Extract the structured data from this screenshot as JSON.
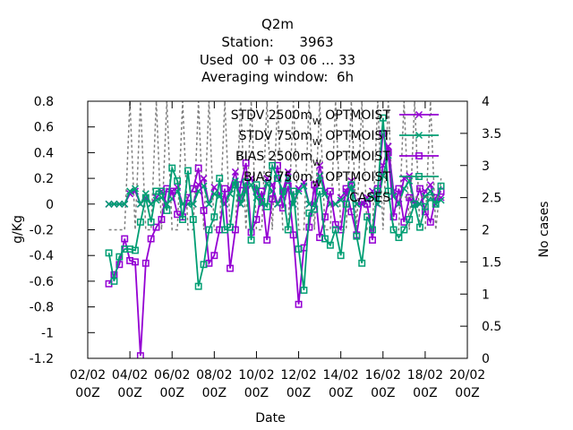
{
  "chart_data": {
    "type": "line",
    "title_lines": [
      "Q2m",
      "Station:      3963",
      "Used  00 + 03 06 ... 33",
      "Averaging window:  6h"
    ],
    "xlabel": "Date",
    "ylabel": "g/Kg",
    "y2label": "No cases",
    "x_range": [
      0,
      18
    ],
    "x_ticks": [
      {
        "x": 0,
        "label": "02/02",
        "label2": "00Z"
      },
      {
        "x": 2,
        "label": "04/02",
        "label2": "00Z"
      },
      {
        "x": 4,
        "label": "06/02",
        "label2": "00Z"
      },
      {
        "x": 6,
        "label": "08/02",
        "label2": "00Z"
      },
      {
        "x": 8,
        "label": "10/02",
        "label2": "00Z"
      },
      {
        "x": 10,
        "label": "12/02",
        "label2": "00Z"
      },
      {
        "x": 12,
        "label": "14/02",
        "label2": "00Z"
      },
      {
        "x": 14,
        "label": "16/02",
        "label2": "00Z"
      },
      {
        "x": 16,
        "label": "18/02",
        "label2": "00Z"
      },
      {
        "x": 18,
        "label": "20/02",
        "label2": "00Z"
      }
    ],
    "ylim": [
      -1.2,
      0.8
    ],
    "y_ticks": [
      -1.2,
      -1,
      -0.8,
      -0.6,
      -0.4,
      -0.2,
      0,
      0.2,
      0.4,
      0.6,
      0.8
    ],
    "y_tick_labels": [
      "-1.2",
      "-1",
      "-0.8",
      "-0.6",
      "-0.4",
      "-0.2",
      "0",
      "0.2",
      "0.4",
      "0.6",
      "0.8"
    ],
    "y2lim": [
      0,
      4
    ],
    "y2_ticks": [
      0,
      0.5,
      1,
      1.5,
      2,
      2.5,
      3,
      3.5,
      4
    ],
    "y2_tick_labels": [
      "0",
      "0.5",
      "1",
      "1.5",
      "2",
      "2.5",
      "3",
      "3.5",
      "4"
    ],
    "grid": false,
    "legend_position": "top-right",
    "series": [
      {
        "name": "STDV 2500m",
        "subscript": "W",
        "name_suffix": " OPTMOIST",
        "color": "#9400d3",
        "marker": "x",
        "axis": "y",
        "x": [
          1.0,
          1.25,
          1.5,
          1.75,
          2.0,
          2.25,
          2.5,
          2.75,
          3.0,
          3.25,
          3.5,
          3.75,
          4.0,
          4.25,
          4.5,
          4.75,
          5.0,
          5.25,
          5.5,
          5.75,
          6.0,
          6.25,
          6.5,
          6.75,
          7.0,
          7.25,
          7.5,
          7.75,
          8.0,
          8.25,
          8.5,
          8.75,
          9.0,
          9.25,
          9.5,
          9.75,
          10.0,
          10.25,
          10.5,
          10.75,
          11.0,
          11.25,
          11.5,
          11.75,
          12.0,
          12.25,
          12.5,
          12.75,
          13.0,
          13.25,
          13.5,
          13.75,
          14.0,
          14.25,
          14.5,
          14.75,
          15.0,
          15.25,
          15.5,
          15.75,
          16.0,
          16.25,
          16.5,
          16.75
        ],
        "values": [
          0,
          0,
          0,
          0,
          0.08,
          0.1,
          0,
          0.05,
          0,
          0.05,
          0.1,
          0,
          0.1,
          0.13,
          0,
          0,
          0,
          0.15,
          0.2,
          0,
          0.13,
          0.08,
          0,
          0.12,
          0.25,
          0,
          0.14,
          0.2,
          0.1,
          0,
          0.2,
          0.15,
          0,
          0.1,
          0.25,
          0,
          0.12,
          0.17,
          0,
          0,
          0.3,
          0.1,
          0,
          0,
          0.05,
          0.1,
          0.18,
          0,
          0,
          0.05,
          0.1,
          0,
          0.3,
          0.45,
          0.1,
          0,
          0.2,
          0.22,
          0,
          0,
          0.1,
          0.15,
          0,
          0.05
        ]
      },
      {
        "name": "STDV 750m",
        "subscript": "W",
        "name_suffix": " OPTMOIST",
        "color": "#009e73",
        "marker": "x",
        "axis": "y",
        "x": [
          1.0,
          1.25,
          1.5,
          1.75,
          2.0,
          2.25,
          2.5,
          2.75,
          3.0,
          3.25,
          3.5,
          3.75,
          4.0,
          4.25,
          4.5,
          4.75,
          5.0,
          5.25,
          5.5,
          5.75,
          6.0,
          6.25,
          6.5,
          6.75,
          7.0,
          7.25,
          7.5,
          7.75,
          8.0,
          8.25,
          8.5,
          8.75,
          9.0,
          9.25,
          9.5,
          9.75,
          10.0,
          10.25,
          10.5,
          10.75,
          11.0,
          11.25,
          11.5,
          11.75,
          12.0,
          12.25,
          12.5,
          12.75,
          13.0,
          13.25,
          13.5,
          13.75,
          14.0,
          14.25,
          14.5,
          14.75,
          15.0,
          15.25,
          15.5,
          15.75,
          16.0,
          16.25,
          16.5,
          16.75
        ],
        "values": [
          0,
          0,
          0,
          0,
          0.1,
          0.12,
          0,
          0.08,
          0,
          0.03,
          0.05,
          0,
          0.04,
          0.1,
          0,
          0,
          0,
          0.1,
          0.14,
          0,
          0.08,
          0.06,
          0,
          0.08,
          0.18,
          0,
          0.1,
          0.15,
          0.05,
          0,
          0.16,
          0.1,
          0,
          0.06,
          0.2,
          0,
          0.1,
          0.14,
          0,
          0,
          0.22,
          0.08,
          0,
          0,
          0.03,
          0.07,
          0.12,
          0,
          0,
          0.03,
          0.06,
          0,
          0.22,
          0.38,
          0.06,
          0,
          0.12,
          0.18,
          0,
          0,
          0.06,
          0.1,
          0,
          0.03
        ]
      },
      {
        "name": "BIAS 2500m",
        "subscript": "W",
        "name_suffix": " OPTMOIST",
        "color": "#9400d3",
        "marker": "square",
        "axis": "y",
        "x": [
          1.0,
          1.25,
          1.5,
          1.75,
          2.0,
          2.25,
          2.5,
          2.75,
          3.0,
          3.25,
          3.5,
          3.75,
          4.0,
          4.25,
          4.5,
          4.75,
          5.0,
          5.25,
          5.5,
          5.75,
          6.0,
          6.25,
          6.5,
          6.75,
          7.0,
          7.25,
          7.5,
          7.75,
          8.0,
          8.25,
          8.5,
          8.75,
          9.0,
          9.25,
          9.5,
          9.75,
          10.0,
          10.25,
          10.5,
          10.75,
          11.0,
          11.25,
          11.5,
          11.75,
          12.0,
          12.25,
          12.5,
          12.75,
          13.0,
          13.25,
          13.5,
          13.75,
          14.0,
          14.25,
          14.5,
          14.75,
          15.0,
          15.25,
          15.5,
          15.75,
          16.0,
          16.25,
          16.5,
          16.75
        ],
        "values": [
          -0.62,
          -0.55,
          -0.47,
          -0.27,
          -0.44,
          -0.45,
          -1.18,
          -0.46,
          -0.27,
          -0.18,
          -0.12,
          0.12,
          0.1,
          -0.08,
          -0.1,
          0.05,
          0.12,
          0.28,
          -0.05,
          -0.46,
          -0.4,
          -0.2,
          0.12,
          -0.5,
          -0.2,
          0.15,
          0.32,
          -0.22,
          -0.12,
          0.1,
          -0.28,
          0.04,
          0.3,
          -0.03,
          0.14,
          -0.24,
          -0.78,
          -0.34,
          -0.18,
          0.15,
          -0.26,
          -0.1,
          0.1,
          -0.16,
          -0.2,
          0.12,
          -0.06,
          -0.24,
          0.02,
          0.0,
          -0.28,
          0.12,
          0.55,
          0.4,
          -0.1,
          0.12,
          -0.14,
          0.05,
          0.0,
          0.12,
          -0.06,
          -0.14,
          0.05,
          0.1
        ]
      },
      {
        "name": "BIAS 750m",
        "subscript": "W",
        "name_suffix": " OPTMOIST",
        "color": "#009e73",
        "marker": "square",
        "axis": "y",
        "x": [
          1.0,
          1.25,
          1.5,
          1.75,
          2.0,
          2.25,
          2.5,
          2.75,
          3.0,
          3.25,
          3.5,
          3.75,
          4.0,
          4.25,
          4.5,
          4.75,
          5.0,
          5.25,
          5.5,
          5.75,
          6.0,
          6.25,
          6.5,
          6.75,
          7.0,
          7.25,
          7.5,
          7.75,
          8.0,
          8.25,
          8.5,
          8.75,
          9.0,
          9.25,
          9.5,
          9.75,
          10.0,
          10.25,
          10.5,
          10.75,
          11.0,
          11.25,
          11.5,
          11.75,
          12.0,
          12.25,
          12.5,
          12.75,
          13.0,
          13.25,
          13.5,
          13.75,
          14.0,
          14.25,
          14.5,
          14.75,
          15.0,
          15.25,
          15.5,
          15.75,
          16.0,
          16.25,
          16.5,
          16.75
        ],
        "values": [
          -0.38,
          -0.6,
          -0.41,
          -0.35,
          -0.35,
          -0.36,
          -0.14,
          0.05,
          -0.14,
          0.1,
          0.1,
          -0.05,
          0.28,
          0.18,
          -0.12,
          0.26,
          -0.12,
          -0.64,
          -0.47,
          -0.2,
          -0.1,
          0.2,
          -0.2,
          -0.18,
          0.15,
          0.05,
          0.17,
          -0.28,
          0.15,
          0.02,
          -0.02,
          0.3,
          0.2,
          0.1,
          -0.2,
          0.1,
          -0.35,
          -0.67,
          -0.07,
          -0.04,
          0.1,
          -0.27,
          -0.32,
          -0.2,
          -0.4,
          0.0,
          0.15,
          -0.25,
          -0.46,
          -0.1,
          -0.2,
          0.1,
          0.67,
          0.1,
          -0.2,
          -0.26,
          -0.2,
          -0.12,
          0.0,
          -0.18,
          -0.02,
          0.05,
          0.0,
          0.14
        ]
      },
      {
        "name": "CASES",
        "color": "#7f7f7f",
        "marker": "none",
        "dashed": true,
        "axis": "y2",
        "x": [
          1.0,
          1.25,
          1.5,
          1.75,
          2.0,
          2.25,
          2.5,
          2.75,
          3.0,
          3.25,
          3.5,
          3.75,
          4.0,
          4.25,
          4.5,
          4.75,
          5.0,
          5.25,
          5.5,
          5.75,
          6.0,
          6.25,
          6.5,
          6.75,
          7.0,
          7.25,
          7.5,
          7.75,
          8.0,
          8.25,
          8.5,
          8.75,
          9.0,
          9.25,
          9.5,
          9.75,
          10.0,
          10.25,
          10.5,
          10.75,
          11.0,
          11.25,
          11.5,
          11.75,
          12.0,
          12.25,
          12.5,
          12.75,
          13.0,
          13.25,
          13.5,
          13.75,
          14.0,
          14.25,
          14.5,
          14.75,
          15.0,
          15.25,
          15.5,
          15.75,
          16.0,
          16.25,
          16.5,
          16.75
        ],
        "values": [
          2,
          2,
          2,
          2,
          4,
          2,
          4,
          2,
          2,
          4,
          2,
          4,
          2,
          2,
          4,
          2,
          2,
          4,
          2,
          4,
          2,
          2,
          4,
          2,
          2,
          4,
          2,
          4,
          2,
          2,
          4,
          2,
          4,
          2,
          2,
          4,
          2,
          2,
          4,
          2,
          4,
          2,
          2,
          4,
          2,
          2,
          4,
          2,
          4,
          2,
          2,
          4,
          2,
          4,
          2,
          2,
          4,
          2,
          4,
          2,
          2,
          4,
          2,
          2.8
        ]
      }
    ]
  }
}
